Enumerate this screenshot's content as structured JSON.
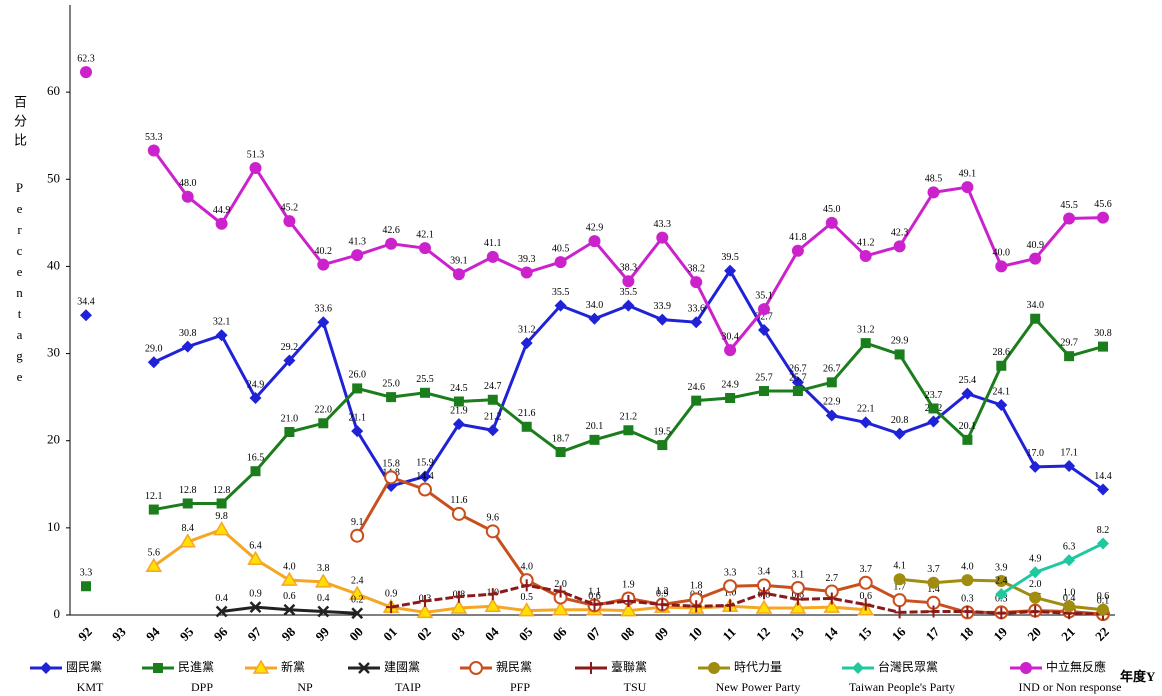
{
  "chart_data": {
    "type": "line",
    "y_label": "百分比",
    "y_label_en": "Percentage",
    "x_label": "年度Y",
    "categories": [
      "92",
      "93",
      "94",
      "95",
      "96",
      "97",
      "98",
      "99",
      "00",
      "01",
      "02",
      "03",
      "04",
      "05",
      "06",
      "07",
      "08",
      "09",
      "10",
      "11",
      "12",
      "13",
      "14",
      "15",
      "16",
      "17",
      "18",
      "19",
      "20",
      "21",
      "22"
    ],
    "ylim": [
      0,
      70
    ],
    "yticks": [
      0,
      10,
      20,
      30,
      40,
      50,
      60
    ],
    "series": [
      {
        "name": "國民黨",
        "name_en": "KMT",
        "color": "#1f22d6",
        "marker": "diamond",
        "labels": true,
        "values": [
          34.4,
          null,
          29.0,
          30.8,
          32.1,
          24.9,
          29.2,
          33.6,
          21.1,
          14.8,
          15.9,
          21.9,
          21.2,
          31.2,
          35.5,
          34.0,
          35.5,
          33.9,
          33.6,
          39.5,
          32.7,
          26.7,
          22.9,
          22.1,
          20.8,
          22.2,
          25.4,
          24.1,
          17.0,
          17.1,
          14.4
        ]
      },
      {
        "name": "民進黨",
        "name_en": "DPP",
        "color": "#1b7d1b",
        "marker": "square",
        "labels": true,
        "values": [
          3.3,
          null,
          12.1,
          12.8,
          12.8,
          16.5,
          21.0,
          22.0,
          26.0,
          25.0,
          25.5,
          24.5,
          24.7,
          21.6,
          18.7,
          20.1,
          21.2,
          19.5,
          24.6,
          24.9,
          25.7,
          25.7,
          26.7,
          31.2,
          29.9,
          23.7,
          20.1,
          28.6,
          34.0,
          29.7,
          30.8
        ]
      },
      {
        "name": "新黨",
        "name_en": "NP",
        "color": "#f5a623",
        "marker": "triangle",
        "labels": true,
        "values": [
          null,
          null,
          5.6,
          8.4,
          9.8,
          6.4,
          4.0,
          3.8,
          2.4,
          0.9,
          0.3,
          0.8,
          1.0,
          0.5,
          0.6,
          0.6,
          0.5,
          0.9,
          0.8,
          1.0,
          0.8,
          0.8,
          0.9,
          0.6,
          null,
          null,
          null,
          null,
          null,
          null,
          null
        ]
      },
      {
        "name": "建國黨",
        "name_en": "TAIP",
        "color": "#222222",
        "marker": "x",
        "labels": true,
        "values": [
          null,
          null,
          null,
          null,
          0.4,
          0.9,
          0.6,
          0.4,
          0.2,
          null,
          null,
          null,
          null,
          null,
          null,
          null,
          null,
          null,
          null,
          null,
          null,
          null,
          null,
          null,
          null,
          null,
          null,
          null,
          null,
          null,
          null
        ]
      },
      {
        "name": "親民黨",
        "name_en": "PFP",
        "color": "#c8501e",
        "marker": "circle-open",
        "labels": true,
        "values": [
          null,
          null,
          null,
          null,
          null,
          null,
          null,
          null,
          9.1,
          15.8,
          14.4,
          11.6,
          9.6,
          4.0,
          2.0,
          1.1,
          1.9,
          1.2,
          1.8,
          3.3,
          3.4,
          3.1,
          2.7,
          3.7,
          1.7,
          1.4,
          0.3,
          0.3,
          0.5,
          0.4,
          0.1
        ]
      },
      {
        "name": "臺聯黨",
        "name_en": "TSU",
        "color": "#8b1a1a",
        "marker": "plus",
        "labels": false,
        "values": [
          null,
          null,
          null,
          null,
          null,
          null,
          null,
          null,
          null,
          0.9,
          1.6,
          2.1,
          2.4,
          3.4,
          2.7,
          1.2,
          1.6,
          1.2,
          1.0,
          1.1,
          2.5,
          1.8,
          1.9,
          1.2,
          0.3,
          0.4,
          0.4,
          0.2,
          0.4,
          0.2,
          0.1
        ]
      },
      {
        "name": "時代力量",
        "name_en": "New Power Party",
        "color": "#a08c10",
        "marker": "circle",
        "labels": true,
        "values": [
          null,
          null,
          null,
          null,
          null,
          null,
          null,
          null,
          null,
          null,
          null,
          null,
          null,
          null,
          null,
          null,
          null,
          null,
          null,
          null,
          null,
          null,
          null,
          null,
          4.1,
          3.7,
          4.0,
          3.9,
          2.0,
          1.0,
          0.6
        ]
      },
      {
        "name": "台灣民眾黨",
        "name_en": "Taiwan People's Party",
        "color": "#20c8a0",
        "marker": "diamond",
        "labels": true,
        "values": [
          null,
          null,
          null,
          null,
          null,
          null,
          null,
          null,
          null,
          null,
          null,
          null,
          null,
          null,
          null,
          null,
          null,
          null,
          null,
          null,
          null,
          null,
          null,
          null,
          null,
          null,
          null,
          2.4,
          4.9,
          6.3,
          8.2
        ]
      },
      {
        "name": "中立無反應",
        "name_en": "IND or Non response",
        "color": "#cc22cc",
        "marker": "circle",
        "labels": true,
        "values": [
          62.3,
          null,
          53.3,
          48.0,
          44.9,
          51.3,
          45.2,
          40.2,
          41.3,
          42.6,
          42.1,
          39.1,
          41.1,
          39.3,
          40.5,
          42.9,
          38.3,
          43.3,
          38.2,
          30.4,
          35.1,
          41.8,
          45.0,
          41.2,
          42.3,
          48.5,
          49.1,
          40.0,
          40.9,
          45.5,
          45.6
        ]
      }
    ]
  }
}
